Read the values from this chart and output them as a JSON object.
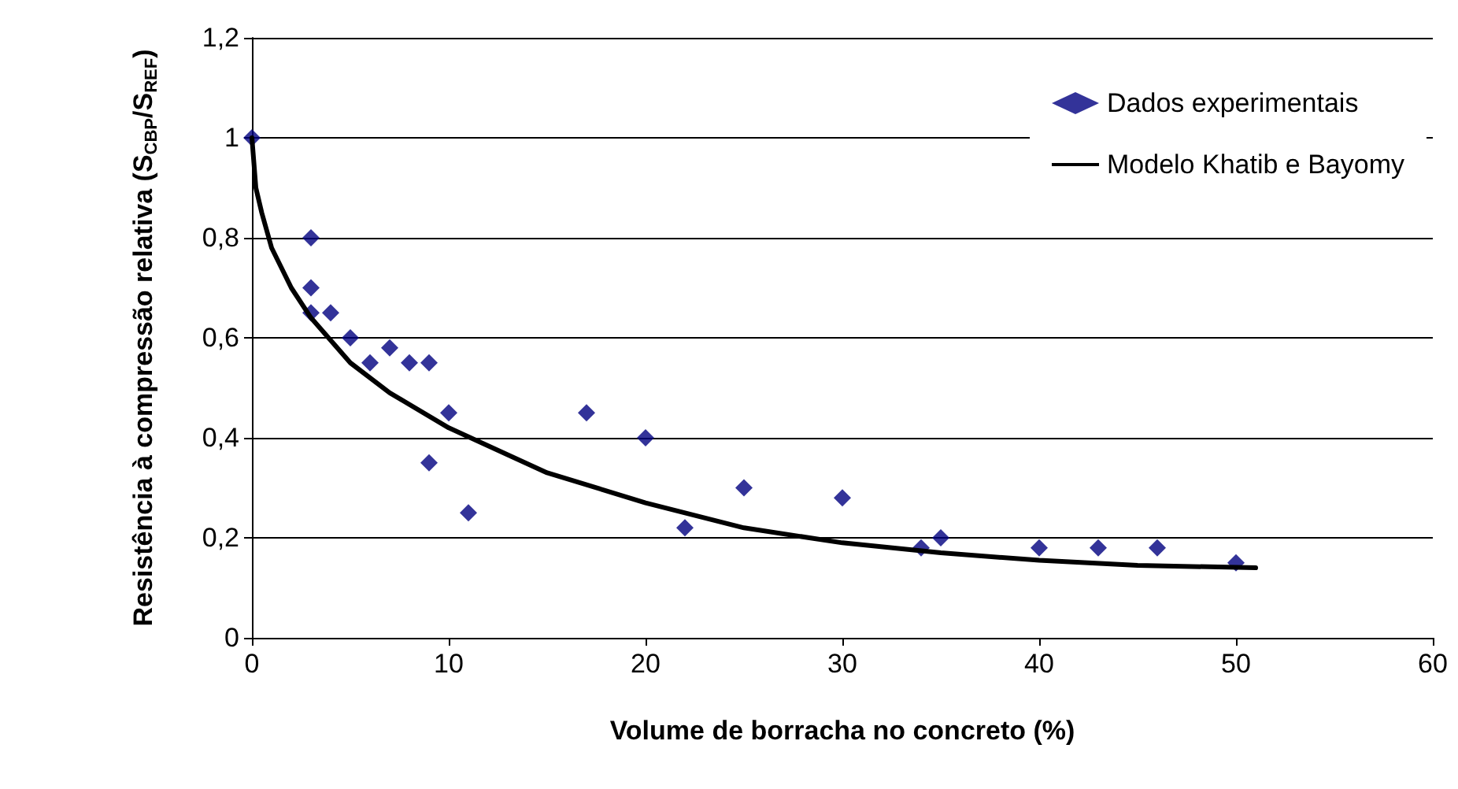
{
  "chart_data": {
    "type": "scatter",
    "xlabel": "Volume de borracha no concreto (%)",
    "ylabel": "Resistência à compressão relativa (S$_{CBP}$/S$_{REF}$)",
    "xlim": [
      0,
      60
    ],
    "xticks": [
      0,
      10,
      20,
      30,
      40,
      50,
      60
    ],
    "ylim": [
      0,
      1.2
    ],
    "yticks": [
      0,
      {
        "value": 0.2,
        "label": "0,2"
      },
      {
        "value": 0.4,
        "label": "0,4"
      },
      {
        "value": 0.6,
        "label": "0,6"
      },
      {
        "value": 0.8,
        "label": "0,8"
      },
      1,
      {
        "value": 1.2,
        "label": "1,2"
      }
    ],
    "grid": "y",
    "legend": "top right",
    "series": [
      {
        "name": "Dados experimentais",
        "marker": "diamond",
        "color": "#000080",
        "x": [
          0,
          3,
          3,
          3,
          4,
          5,
          6,
          7,
          8,
          9,
          9,
          10,
          11,
          17,
          20,
          22,
          25,
          30,
          34,
          35,
          40,
          43,
          46,
          50
        ],
        "values": [
          1,
          0.8,
          0.7,
          0.65,
          0.65,
          0.6,
          0.55,
          0.58,
          0.55,
          0.55,
          0.35,
          0.45,
          0.25,
          0.45,
          0.4,
          0.22,
          0.3,
          0.28,
          0.18,
          0.2,
          0.18,
          0.18,
          0.18,
          0.15
        ]
      },
      {
        "name": "Modelo Khatib e Bayomy",
        "type": "line",
        "marker": "none",
        "line_style": "solid",
        "color": "#000000",
        "x": [
          0,
          0.2,
          0.5,
          1,
          2,
          3,
          5,
          7,
          10,
          15,
          20,
          25,
          30,
          35,
          40,
          45,
          51
        ],
        "values": [
          1,
          0.9,
          0.85,
          0.78,
          0.7,
          0.64,
          0.55,
          0.49,
          0.42,
          0.33,
          0.27,
          0.22,
          0.19,
          0.17,
          0.155,
          0.145,
          0.14
        ]
      }
    ]
  }
}
